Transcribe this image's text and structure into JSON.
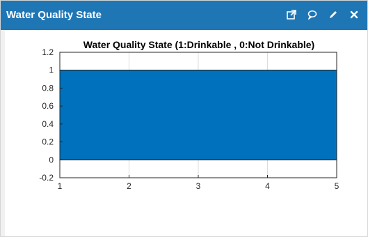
{
  "panel": {
    "title": "Water Quality State",
    "header_color": "#1f76b5",
    "icons": [
      "external-link-icon",
      "comment-icon",
      "pencil-icon",
      "close-icon"
    ]
  },
  "chart_data": {
    "type": "area",
    "title": "Water Quality State  (1:Drinkable , 0:Not Drinkable)",
    "xlabel": "",
    "ylabel": "",
    "x": [
      1,
      2,
      3,
      4,
      5
    ],
    "series": [
      {
        "values": [
          1,
          1,
          1,
          1,
          1
        ],
        "color": "#0072bd"
      }
    ],
    "xlim": [
      1,
      5
    ],
    "ylim": [
      -0.2,
      1.2
    ],
    "xticks": [
      "1",
      "2",
      "3",
      "4",
      "5"
    ],
    "yticks": [
      "-0.2",
      "0",
      "0.2",
      "0.4",
      "0.6",
      "0.8",
      "1",
      "1.2"
    ],
    "grid": true
  }
}
